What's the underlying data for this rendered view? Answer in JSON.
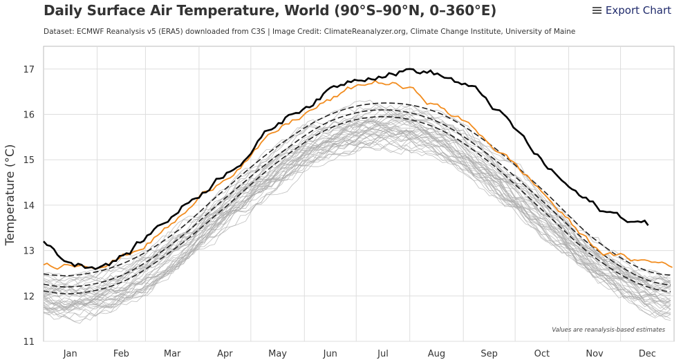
{
  "header": {
    "title": "Daily Surface Air Temperature, World (90°S–90°N, 0–360°E)",
    "subtitle": "Dataset: ECMWF Reanalysis v5 (ERA5) downloaded from C3S | Image Credit: ClimateReanalyzer.org, Climate Change Institute, University of Maine",
    "export_label": "Export Chart",
    "export_icon": "menu-icon"
  },
  "chart_data": {
    "type": "line",
    "ylabel": "Temperature (°C)",
    "xlabel": "",
    "ylim": [
      11,
      17.5
    ],
    "yticks": [
      11,
      12,
      13,
      14,
      15,
      16,
      17
    ],
    "months": [
      "Jan",
      "Feb",
      "Mar",
      "Apr",
      "May",
      "Jun",
      "Jul",
      "Aug",
      "Sep",
      "Oct",
      "Nov",
      "Dec"
    ],
    "grid": true,
    "legend": "none",
    "annotation": "Values are reanalysis-based estimates",
    "colors": {
      "historical": "#a9a9a9",
      "highlight_current": "#000000",
      "highlight_previous": "#f28c1e",
      "reference_lines": "#222222"
    },
    "series": [
      {
        "role": "historical",
        "style": "thin-gray",
        "count": 40,
        "monthly": [
          12.0,
          12.25,
          12.95,
          13.95,
          14.85,
          15.5,
          15.75,
          15.55,
          14.75,
          13.8,
          12.8,
          12.15
        ]
      },
      {
        "role": "highlight_previous",
        "style": "orange",
        "monthly": [
          12.75,
          12.9,
          13.6,
          14.65,
          15.6,
          16.3,
          16.7,
          16.2,
          15.4,
          14.3,
          13.1,
          12.75
        ]
      },
      {
        "role": "highlight_current",
        "style": "black-thick",
        "monthly": [
          12.75,
          12.9,
          13.8,
          14.75,
          15.8,
          16.55,
          17.0,
          16.9,
          16.25,
          14.95,
          13.95,
          13.55
        ]
      },
      {
        "role": "reference_upper",
        "style": "dashed",
        "monthly": [
          12.45,
          12.7,
          13.35,
          14.35,
          15.3,
          16.0,
          16.25,
          16.05,
          15.35,
          14.35,
          13.25,
          12.55
        ]
      },
      {
        "role": "reference_mean",
        "style": "dashed",
        "monthly": [
          12.2,
          12.45,
          13.15,
          14.15,
          15.1,
          15.85,
          16.1,
          15.85,
          15.1,
          14.1,
          13.05,
          12.35
        ]
      },
      {
        "role": "reference_lower",
        "style": "dashed",
        "monthly": [
          12.05,
          12.3,
          13.0,
          13.95,
          14.95,
          15.7,
          15.95,
          15.7,
          14.95,
          13.9,
          12.85,
          12.2
        ]
      }
    ]
  }
}
